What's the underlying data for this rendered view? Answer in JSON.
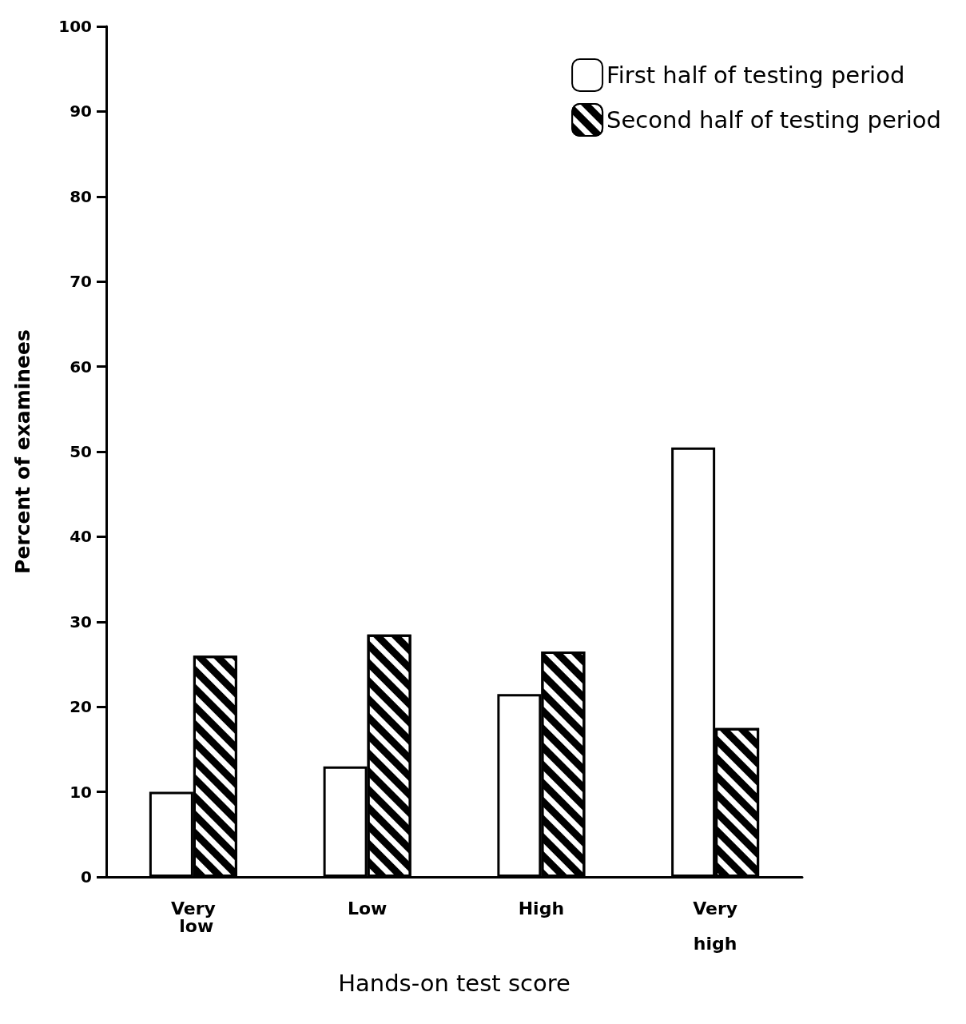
{
  "chart_data": {
    "type": "bar",
    "xlabel": "Hands-on test score",
    "ylabel": "Percent of examinees",
    "categories": [
      "Very low",
      "Low",
      "High",
      "Very high"
    ],
    "series": [
      {
        "name": "First half of testing period",
        "color": "#ffffff",
        "values": [
          10,
          13,
          21.5,
          50.5
        ]
      },
      {
        "name": "Second half of testing period",
        "color": "#000000",
        "values": [
          26,
          28.5,
          26.5,
          17.5
        ]
      }
    ],
    "ylim": [
      0,
      100
    ],
    "yticks": [
      0,
      10,
      20,
      30,
      40,
      50,
      60,
      70,
      80,
      90,
      100
    ],
    "grid": false,
    "legend": "top right"
  }
}
